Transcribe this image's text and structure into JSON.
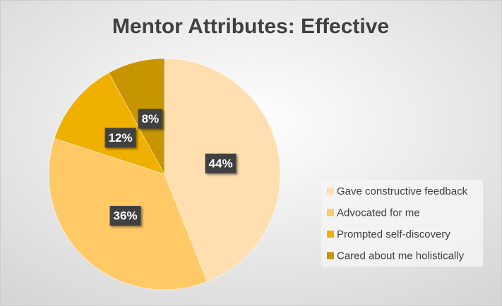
{
  "chart_data": {
    "type": "pie",
    "title": "Mentor Attributes: Effective",
    "categories": [
      "Gave constructive feedback",
      "Advocated for me",
      "Prompted self-discovery",
      "Cared about me holistically"
    ],
    "values": [
      44,
      36,
      12,
      8
    ],
    "value_labels": [
      "44%",
      "36%",
      "12%",
      "8%"
    ],
    "colors": [
      "#FFDFB0",
      "#FFC966",
      "#EFB000",
      "#C79500"
    ],
    "legend": "right"
  }
}
